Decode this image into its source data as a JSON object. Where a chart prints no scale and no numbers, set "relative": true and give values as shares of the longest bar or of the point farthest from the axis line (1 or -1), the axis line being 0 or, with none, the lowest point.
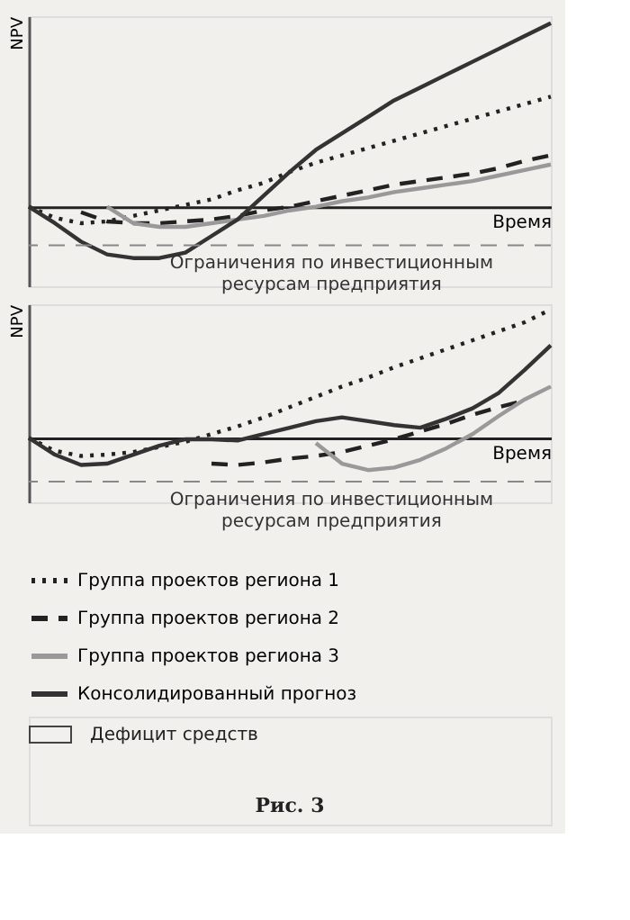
{
  "chart_data": [
    {
      "type": "line",
      "relative": true,
      "ylabel": "NPV",
      "xlabel": "Время",
      "tick_labels": false,
      "grid": false,
      "marker": "none",
      "categories": [
        null,
        null,
        null,
        null,
        null,
        null,
        null,
        null,
        null,
        null,
        null,
        null,
        null,
        null,
        null,
        null,
        null,
        null,
        null,
        null,
        null
      ],
      "ref_lines": [
        {
          "axis": "y",
          "value": -0.21,
          "label": "Ограничения по инвестиционным ресурсам предприятия",
          "color": "#888888",
          "line_style": "dashed"
        }
      ],
      "series": [
        {
          "color": "#222222",
          "line_style": "dotted",
          "values": [
            0,
            -0.06,
            -0.09,
            -0.08,
            -0.05,
            -0.02,
            0.01,
            0.04,
            0.09,
            0.13,
            0.19,
            0.24,
            0.28,
            0.32,
            0.36,
            0.4,
            0.44,
            0.48,
            0.52,
            0.56,
            0.6
          ]
        },
        {
          "color": "#222222",
          "line_style": "dashed",
          "values": [
            null,
            null,
            -0.03,
            -0.08,
            -0.09,
            -0.09,
            -0.08,
            -0.07,
            -0.05,
            -0.02,
            0,
            0.03,
            0.06,
            0.09,
            0.12,
            0.14,
            0.16,
            0.18,
            0.21,
            0.25,
            0.28
          ]
        },
        {
          "color": "#999999",
          "line_style": "solid",
          "values": [
            null,
            null,
            null,
            0,
            -0.09,
            -0.11,
            -0.11,
            -0.09,
            -0.07,
            -0.05,
            -0.02,
            0,
            0.03,
            0.05,
            0.08,
            0.1,
            0.12,
            0.14,
            0.17,
            0.2,
            0.23
          ]
        },
        {
          "color": "#333333",
          "line_style": "solid",
          "values": [
            0,
            -0.09,
            -0.19,
            -0.26,
            -0.28,
            -0.28,
            -0.25,
            -0.16,
            -0.07,
            0.06,
            0.19,
            0.31,
            0.4,
            0.49,
            0.58,
            0.65,
            0.72,
            0.79,
            0.86,
            0.93,
            1
          ]
        }
      ]
    },
    {
      "type": "line",
      "relative": true,
      "ylabel": "NPV",
      "xlabel": "Время",
      "tick_labels": false,
      "grid": false,
      "legend": "bottom",
      "marker": "none",
      "categories": [
        null,
        null,
        null,
        null,
        null,
        null,
        null,
        null,
        null,
        null,
        null,
        null,
        null,
        null,
        null,
        null,
        null,
        null,
        null,
        null,
        null
      ],
      "ref_lines": [
        {
          "axis": "y",
          "value": -0.34,
          "label": "Ограничения по инвестиционным ресурсам предприятия",
          "color": "#888888",
          "line_style": "dashed"
        }
      ],
      "series": [
        {
          "name": "Группа проектов региона 1",
          "color": "#222222",
          "line_style": "dotted",
          "values": [
            0,
            -0.1,
            -0.14,
            -0.13,
            -0.11,
            -0.07,
            -0.03,
            0.03,
            0.09,
            0.16,
            0.24,
            0.32,
            0.4,
            0.47,
            0.55,
            0.62,
            0.69,
            0.76,
            0.83,
            0.9,
            1
          ]
        },
        {
          "name": "Группа проектов региона 2",
          "color": "#222222",
          "line_style": "dashed",
          "values": [
            null,
            null,
            null,
            null,
            null,
            null,
            null,
            -0.2,
            -0.21,
            -0.19,
            -0.16,
            -0.14,
            -0.11,
            -0.06,
            -0.01,
            0.05,
            0.11,
            0.18,
            0.24,
            0.29,
            null
          ]
        },
        {
          "name": "Группа проектов региона 3",
          "color": "#999999",
          "line_style": "solid",
          "values": [
            null,
            null,
            null,
            null,
            null,
            null,
            null,
            null,
            null,
            null,
            null,
            -0.04,
            -0.2,
            -0.25,
            -0.23,
            -0.17,
            -0.08,
            0.03,
            0.17,
            0.3,
            0.4
          ]
        },
        {
          "name": "Консолидированный прогноз",
          "color": "#333333",
          "line_style": "solid",
          "values": [
            0,
            -0.13,
            -0.21,
            -0.2,
            -0.13,
            -0.06,
            -0.01,
            -0.01,
            -0.02,
            0.03,
            0.08,
            0.13,
            0.16,
            0.13,
            0.1,
            0.08,
            0.15,
            0.23,
            0.35,
            0.53,
            0.72
          ]
        }
      ],
      "annotations": [
        "Дефицит средств",
        "Рис. 3"
      ]
    }
  ]
}
